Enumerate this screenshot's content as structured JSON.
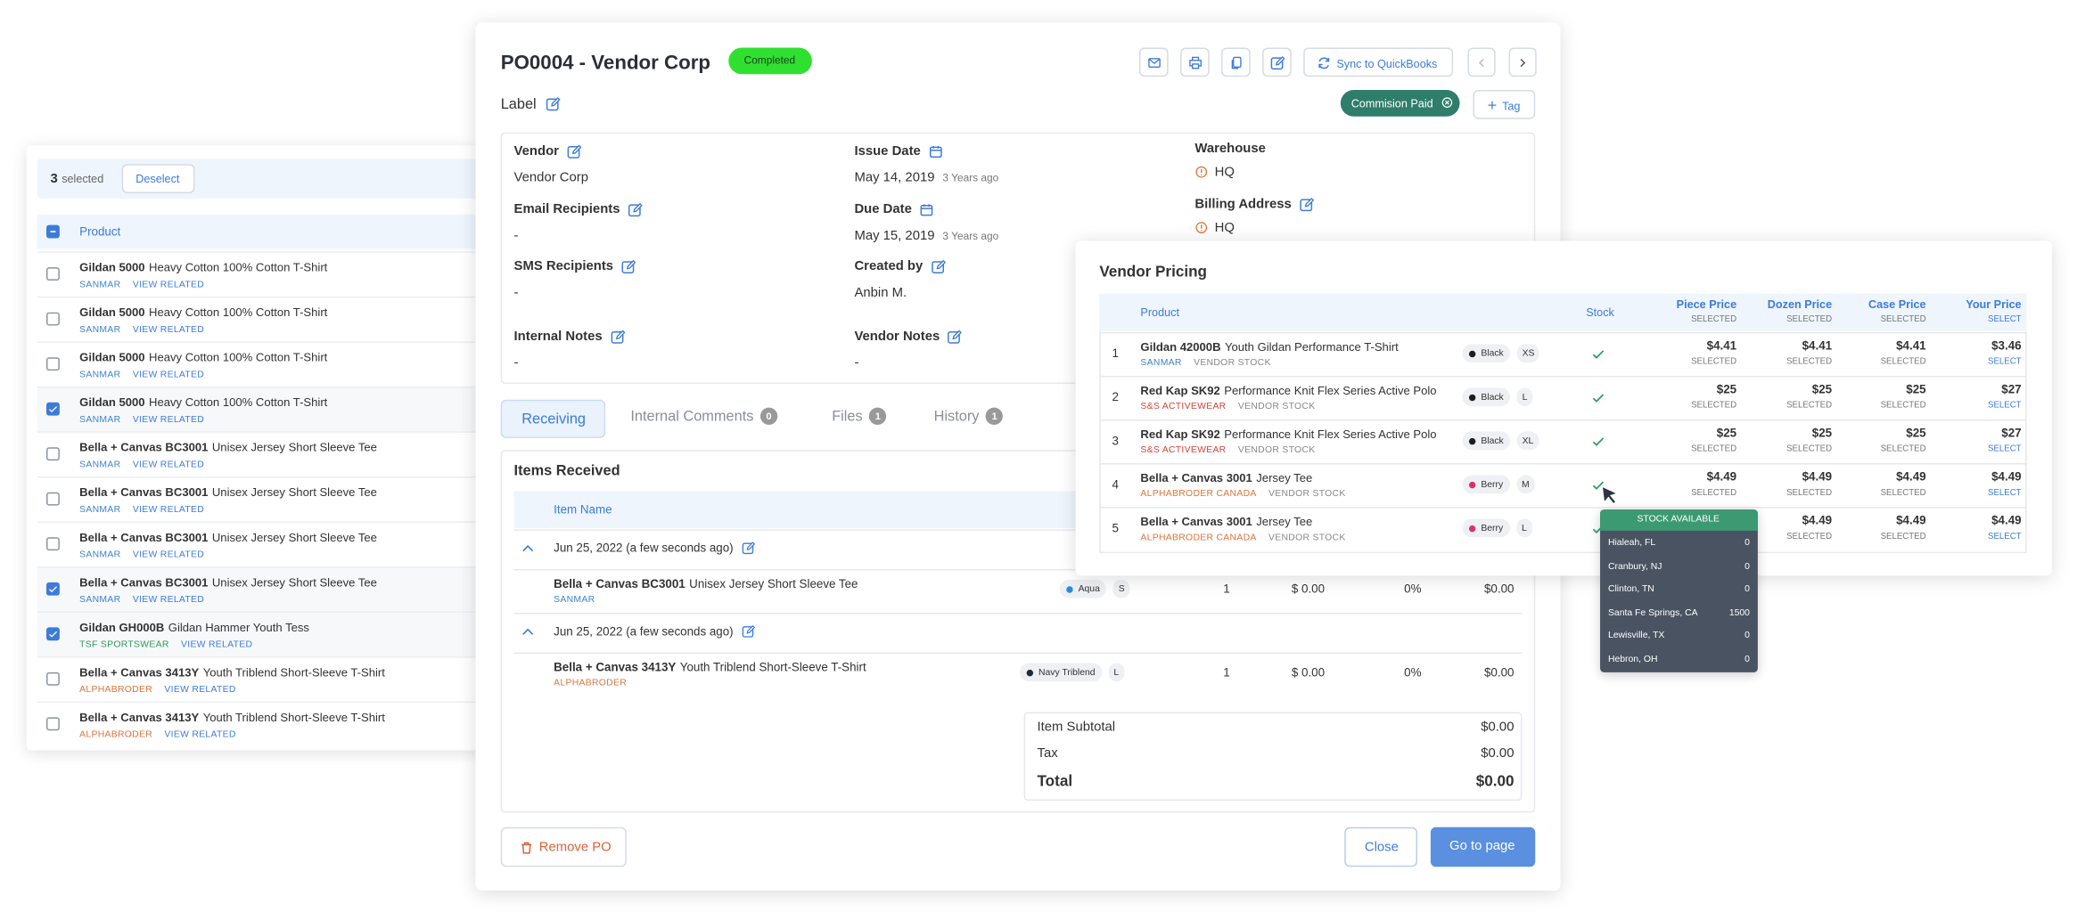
{
  "left_panel": {
    "selected_count": 3,
    "selected_label": "selected",
    "deselect": "Deselect",
    "column": "Product",
    "rows": [
      {
        "brand": "Gildan 5000",
        "name": "Heavy Cotton 100% Cotton T-Shirt",
        "vendor": "SANMAR",
        "vendor_color": "#3f83c9",
        "link": "VIEW RELATED",
        "checked": false
      },
      {
        "brand": "Gildan 5000",
        "name": "Heavy Cotton 100% Cotton T-Shirt",
        "vendor": "SANMAR",
        "vendor_color": "#3f83c9",
        "link": "VIEW RELATED",
        "checked": false
      },
      {
        "brand": "Gildan 5000",
        "name": "Heavy Cotton 100% Cotton T-Shirt",
        "vendor": "SANMAR",
        "vendor_color": "#3f83c9",
        "link": "VIEW RELATED",
        "checked": false
      },
      {
        "brand": "Gildan 5000",
        "name": "Heavy Cotton 100% Cotton T-Shirt",
        "vendor": "SANMAR",
        "vendor_color": "#3f83c9",
        "link": "VIEW RELATED",
        "checked": true
      },
      {
        "brand": "Bella + Canvas BC3001",
        "name": "Unisex Jersey Short Sleeve Tee",
        "vendor": "SANMAR",
        "vendor_color": "#3f83c9",
        "link": "VIEW RELATED",
        "checked": false
      },
      {
        "brand": "Bella + Canvas BC3001",
        "name": "Unisex Jersey Short Sleeve Tee",
        "vendor": "SANMAR",
        "vendor_color": "#3f83c9",
        "link": "VIEW RELATED",
        "checked": false
      },
      {
        "brand": "Bella + Canvas BC3001",
        "name": "Unisex Jersey Short Sleeve Tee",
        "vendor": "SANMAR",
        "vendor_color": "#3f83c9",
        "link": "VIEW RELATED",
        "checked": false
      },
      {
        "brand": "Bella + Canvas BC3001",
        "name": "Unisex Jersey Short Sleeve Tee",
        "vendor": "SANMAR",
        "vendor_color": "#3f83c9",
        "link": "VIEW RELATED",
        "checked": true
      },
      {
        "brand": "Gildan GH000B",
        "name": "Gildan Hammer Youth Tess",
        "vendor": "TSF SPORTSWEAR",
        "vendor_color": "#2f9a5a",
        "link": "VIEW RELATED",
        "checked": true
      },
      {
        "brand": "Bella + Canvas 3413Y",
        "name": "Youth Triblend Short-Sleeve T-Shirt",
        "vendor": "ALPHABRODER",
        "vendor_color": "#d9743a",
        "link": "VIEW RELATED",
        "checked": false
      },
      {
        "brand": "Bella + Canvas 3413Y",
        "name": "Youth Triblend Short-Sleeve T-Shirt",
        "vendor": "ALPHABRODER",
        "vendor_color": "#d9743a",
        "link": "VIEW RELATED",
        "checked": false
      }
    ]
  },
  "po": {
    "title": "PO0004 - Vendor Corp",
    "status": "Completed",
    "sync": "Sync to QuickBooks",
    "label": "Label",
    "tags": [
      "Commision Paid"
    ],
    "add_tag": "Tag",
    "fields": [
      {
        "label": "Vendor",
        "value": "Vendor Corp"
      },
      {
        "label": "Email Recipients",
        "value": "-"
      },
      {
        "label": "SMS Recipients",
        "value": "-"
      },
      {
        "label": "Internal Notes",
        "value": "-"
      },
      {
        "label": "Issue Date",
        "value": "May 14, 2019",
        "note": "3 Years ago"
      },
      {
        "label": "Due Date",
        "value": "May 15, 2019",
        "note": "3 Years ago"
      },
      {
        "label": "Created by",
        "value": "Anbin M."
      },
      {
        "label": "Vendor Notes",
        "value": "-"
      },
      {
        "label": "Warehouse",
        "value": "HQ"
      },
      {
        "label": "Billing Address",
        "value": "HQ"
      }
    ],
    "tabs": [
      {
        "label": "Receiving"
      },
      {
        "label": "Internal Comments",
        "count": 0
      },
      {
        "label": "Files",
        "count": 1
      },
      {
        "label": "History",
        "count": 1
      }
    ],
    "items_title": "Items Received",
    "item_column": "Item Name",
    "groups": [
      {
        "date": "Jun 25, 2022 (a few seconds ago)",
        "items": [
          {
            "brand": "Bella + Canvas BC3001",
            "name": "Unisex Jersey Short Sleeve Tee",
            "vendor": "SANMAR",
            "vendor_color": "#3f83c9",
            "color": "Aqua",
            "swatch": "#2a8ae6",
            "size": "S",
            "qty": 1,
            "cost": "$ 0.00",
            "discount": "0%",
            "total": "$0.00"
          }
        ]
      },
      {
        "date": "Jun 25, 2022 (a few seconds ago)",
        "items": [
          {
            "brand": "Bella + Canvas 3413Y",
            "name": "Youth Triblend Short-Sleeve T-Shirt",
            "vendor": "ALPHABRODER",
            "vendor_color": "#d9743a",
            "color": "Navy Triblend",
            "swatch": "#1f2a3c",
            "size": "L",
            "qty": 1,
            "cost": "$ 0.00",
            "discount": "0%",
            "total": "$0.00"
          }
        ]
      }
    ],
    "totals": [
      {
        "label": "Item Subtotal",
        "value": "$0.00"
      },
      {
        "label": "Tax",
        "value": "$0.00"
      },
      {
        "label": "Total",
        "value": "$0.00"
      }
    ],
    "remove": "Remove PO",
    "close": "Close",
    "go": "Go to page"
  },
  "vendor_pricing": {
    "title": "Vendor Pricing",
    "product_column": "Product",
    "stock_column": "Stock",
    "price_columns": [
      {
        "name": "Piece Price",
        "sub": "SELECTED"
      },
      {
        "name": "Dozen Price",
        "sub": "SELECTED"
      },
      {
        "name": "Case Price",
        "sub": "SELECTED"
      },
      {
        "name": "Your Price",
        "sub": "SELECT"
      }
    ],
    "rows": [
      {
        "index": 1,
        "brand": "Gildan 42000B",
        "name": "Youth Gildan Performance T-Shirt",
        "vendor": "SANMAR",
        "vendor_color": "#3f83c9",
        "stock_label": "VENDOR STOCK",
        "color": "Black",
        "swatch": "#1d1d1d",
        "size": "XS",
        "prices": [
          "$4.41",
          "$4.41",
          "$4.41",
          "$3.46"
        ],
        "notes": [
          "SELECTED",
          "SELECTED",
          "SELECTED",
          "SELECT"
        ]
      },
      {
        "index": 2,
        "brand": "Red Kap SK92",
        "name": "Performance Knit Flex Series Active Polo",
        "vendor": "S&S ACTIVEWEAR",
        "vendor_color": "#d0453a",
        "stock_label": "VENDOR STOCK",
        "color": "Black",
        "swatch": "#1d1d1d",
        "size": "L",
        "prices": [
          "$25",
          "$25",
          "$25",
          "$27"
        ],
        "notes": [
          "SELECTED",
          "SELECTED",
          "SELECTED",
          "SELECT"
        ]
      },
      {
        "index": 3,
        "brand": "Red Kap SK92",
        "name": "Performance Knit Flex Series Active Polo",
        "vendor": "S&S ACTIVEWEAR",
        "vendor_color": "#d0453a",
        "stock_label": "VENDOR STOCK",
        "color": "Black",
        "swatch": "#1d1d1d",
        "size": "XL",
        "prices": [
          "$25",
          "$25",
          "$25",
          "$27"
        ],
        "notes": [
          "SELECTED",
          "SELECTED",
          "SELECTED",
          "SELECT"
        ]
      },
      {
        "index": 4,
        "brand": "Bella + Canvas 3001",
        "name": "Jersey Tee",
        "vendor": "ALPHABRODER CANADA",
        "vendor_color": "#d9743a",
        "stock_label": "VENDOR STOCK",
        "color": "Berry",
        "swatch": "#d6336c",
        "size": "M",
        "prices": [
          "$4.49",
          "$4.49",
          "$4.49",
          "$4.49"
        ],
        "notes": [
          "SELECTED",
          "SELECTED",
          "SELECTED",
          "SELECT"
        ]
      },
      {
        "index": 5,
        "brand": "Bella + Canvas 3001",
        "name": "Jersey Tee",
        "vendor": "ALPHABRODER CANADA",
        "vendor_color": "#d9743a",
        "stock_label": "VENDOR STOCK",
        "color": "Berry",
        "swatch": "#d6336c",
        "size": "L",
        "prices": [
          "$4.49",
          "$4.49",
          "$4.49",
          "$4.49"
        ],
        "notes": [
          "SELECTED",
          "SELECTED",
          "SELECTED",
          "SELECT"
        ]
      }
    ]
  },
  "stock_popup": {
    "title": "STOCK AVAILABLE",
    "rows": [
      {
        "location": "Hialeah, FL",
        "qty": 0
      },
      {
        "location": "Cranbury, NJ",
        "qty": 0
      },
      {
        "location": "Clinton, TN",
        "qty": 0
      },
      {
        "location": "Santa Fe Springs, CA",
        "qty": 1500
      },
      {
        "location": "Lewisville, TX",
        "qty": 0
      },
      {
        "location": "Hebron, OH",
        "qty": 0
      }
    ]
  }
}
